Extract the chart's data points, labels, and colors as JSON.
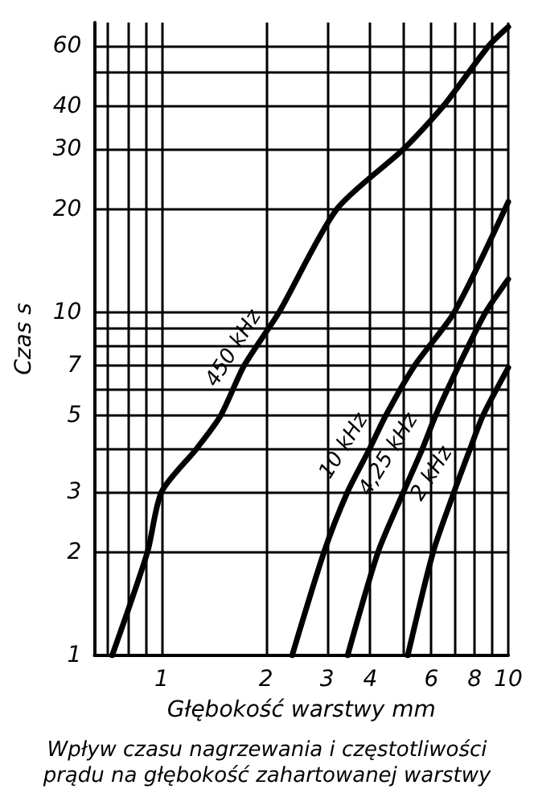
{
  "chart_data": {
    "type": "line",
    "title": "Wpływ czasu nagrzewania i częstotliwości\nprądu na głębokość zahartowanej warstwy",
    "xlabel": "Głębokość warstwy mm",
    "ylabel": "Czas s",
    "log": "xy",
    "grid": true,
    "legend": false,
    "marker": "none",
    "line_style": "solid",
    "xlim": [
      0.64,
      10
    ],
    "ylim": [
      1,
      70
    ],
    "xticks": [
      {
        "value": 0.7,
        "label": null
      },
      {
        "value": 0.8,
        "label": null
      },
      {
        "value": 0.9,
        "label": null
      },
      1,
      2,
      3,
      4,
      {
        "value": 5,
        "label": null
      },
      6,
      {
        "value": 7,
        "label": null
      },
      8,
      {
        "value": 9,
        "label": null
      },
      10
    ],
    "yticks": [
      1,
      2,
      3,
      {
        "value": 4,
        "label": null
      },
      5,
      {
        "value": 6,
        "label": null
      },
      7,
      {
        "value": 8,
        "label": null
      },
      {
        "value": 9,
        "label": null
      },
      10,
      20,
      30,
      40,
      {
        "value": 50,
        "label": null
      },
      60
    ],
    "series": [
      {
        "name": "450 kHz",
        "color": "#000000",
        "x": [
          0.72,
          0.91,
          1.0,
          1.26,
          1.48,
          1.73,
          2.18,
          3.2,
          5.0,
          6.5,
          8.8,
          10
        ],
        "values": [
          1,
          2,
          3,
          4,
          5,
          7,
          10,
          20,
          30,
          40,
          60,
          68
        ]
      },
      {
        "name": "10 kHz",
        "color": "#000000",
        "x": [
          2.38,
          2.94,
          3.44,
          3.98,
          4.43,
          5.37,
          6.98,
          10
        ],
        "values": [
          1,
          2,
          3,
          4,
          5,
          7,
          10,
          21
        ]
      },
      {
        "name": "4,25 kHz",
        "color": "#000000",
        "x": [
          3.44,
          4.21,
          4.99,
          5.65,
          6.17,
          7.2,
          8.6,
          10
        ],
        "values": [
          1,
          2,
          3,
          4,
          5,
          7,
          10,
          12.5
        ]
      },
      {
        "name": "2 kHz",
        "color": "#000000",
        "x": [
          5.13,
          6.07,
          6.98,
          7.76,
          8.45,
          10
        ],
        "values": [
          1,
          2,
          3,
          4,
          5,
          6.9
        ]
      }
    ]
  }
}
